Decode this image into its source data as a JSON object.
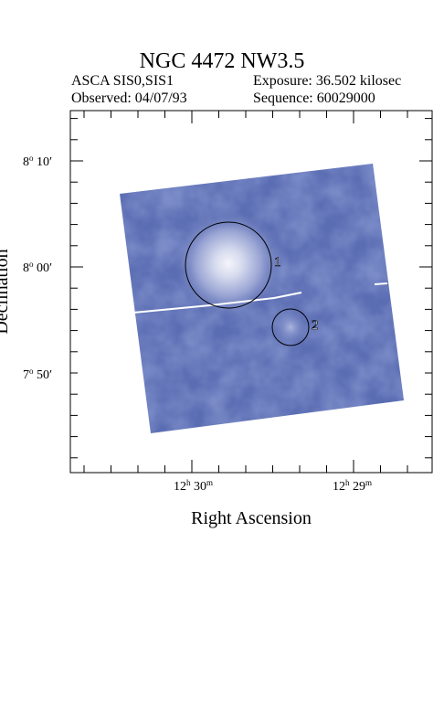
{
  "header": {
    "title": "NGC 4472 NW3.5",
    "instrument": "ASCA SIS0,SIS1",
    "exposure": "Exposure: 36.502 kilosec",
    "observed": "Observed: 04/07/93",
    "sequence": "Sequence: 60029000"
  },
  "axes": {
    "x_title": "Right Ascension",
    "y_title": "Declination",
    "x_ticks": [
      {
        "h": "12",
        "m": "30"
      },
      {
        "h": "12",
        "m": "29"
      }
    ],
    "y_ticks": [
      {
        "deg": "8",
        "min": "10"
      },
      {
        "deg": "8",
        "min": "00"
      },
      {
        "deg": "7",
        "min": "50"
      }
    ]
  },
  "sources": [
    {
      "label": "1"
    },
    {
      "label": "2"
    }
  ],
  "colors": {
    "image_base": "#5a6cb2",
    "image_dark": "#4a5aa2",
    "image_light": "#eef0f8",
    "frame": "#000000"
  }
}
